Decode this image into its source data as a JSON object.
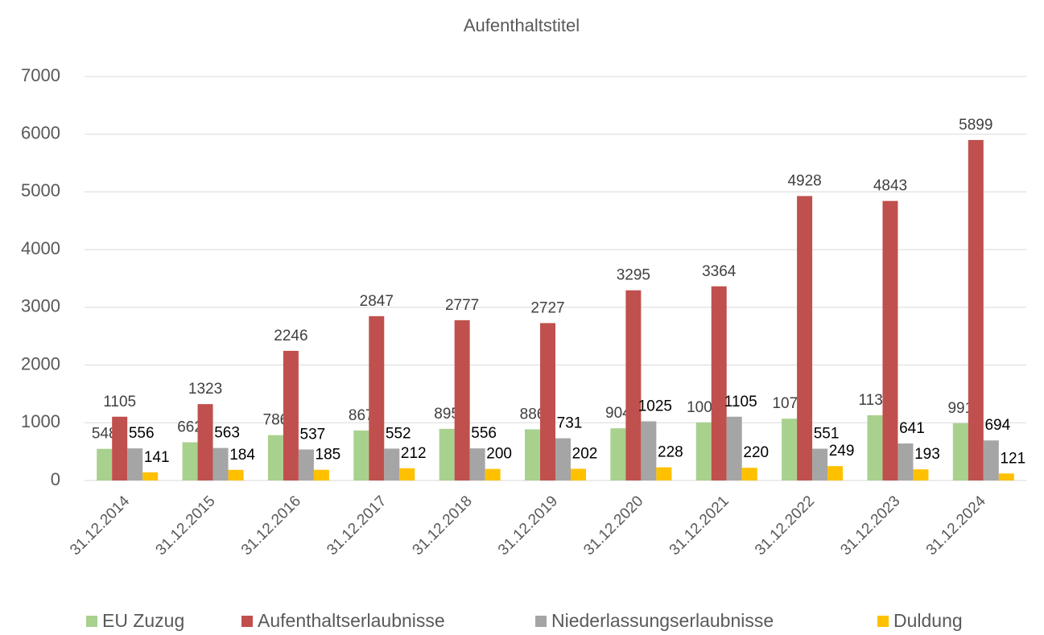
{
  "chart_data": {
    "type": "bar",
    "title": "Aufenthaltstitel",
    "categories": [
      "31.12.2014",
      "31.12.2015",
      "31.12.2016",
      "31.12.2017",
      "31.12.2018",
      "31.12.2019",
      "31.12.2020",
      "31.12.2021",
      "31.12.2022",
      "31.12.2023",
      "31.12.2024"
    ],
    "series": [
      {
        "name": "EU Zuzug",
        "color": "#a9d18e",
        "values": [
          548,
          662,
          786,
          867,
          895,
          886,
          904,
          1007,
          1071,
          1130,
          991
        ]
      },
      {
        "name": "Aufenthaltserlaubnisse",
        "color": "#c0504d",
        "values": [
          1105,
          1323,
          2246,
          2847,
          2777,
          2727,
          3295,
          3364,
          4928,
          4843,
          5899
        ]
      },
      {
        "name": "Niederlassungserlaubnisse",
        "color": "#a5a5a5",
        "values": [
          556,
          563,
          537,
          552,
          556,
          731,
          1025,
          1105,
          551,
          641,
          694
        ]
      },
      {
        "name": "Duldung",
        "color": "#ffc000",
        "values": [
          141,
          184,
          185,
          212,
          200,
          202,
          228,
          220,
          249,
          193,
          121
        ]
      }
    ],
    "ylim": [
      0,
      7000
    ],
    "yticks": [
      0,
      1000,
      2000,
      3000,
      4000,
      5000,
      6000,
      7000
    ],
    "grid": true,
    "legend": "bottom"
  }
}
